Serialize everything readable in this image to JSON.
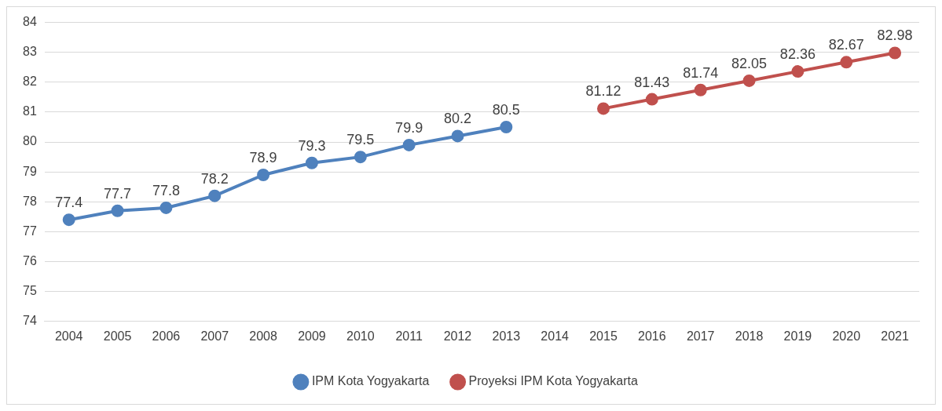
{
  "chart_data": {
    "type": "line",
    "categories": [
      "2004",
      "2005",
      "2006",
      "2007",
      "2008",
      "2009",
      "2010",
      "2011",
      "2012",
      "2013",
      "2014",
      "2015",
      "2016",
      "2017",
      "2018",
      "2019",
      "2020",
      "2021"
    ],
    "series": [
      {
        "name": "IPM Kota Yogyakarta",
        "color": "#4f81bd",
        "values": [
          77.4,
          77.7,
          77.8,
          78.2,
          78.9,
          79.3,
          79.5,
          79.9,
          80.2,
          80.5,
          null,
          null,
          null,
          null,
          null,
          null,
          null,
          null
        ]
      },
      {
        "name": "Proyeksi IPM Kota Yogyakarta",
        "color": "#c0504d",
        "values": [
          null,
          null,
          null,
          null,
          null,
          null,
          null,
          null,
          null,
          null,
          null,
          81.12,
          81.43,
          81.74,
          82.05,
          82.36,
          82.67,
          82.98
        ]
      }
    ],
    "ylim": [
      74,
      84
    ],
    "yticks": [
      74,
      75,
      76,
      77,
      78,
      79,
      80,
      81,
      82,
      83,
      84
    ],
    "grid": "y",
    "legend": "bottom",
    "marker": "circle",
    "line_style": "solid",
    "data_labels": true
  }
}
